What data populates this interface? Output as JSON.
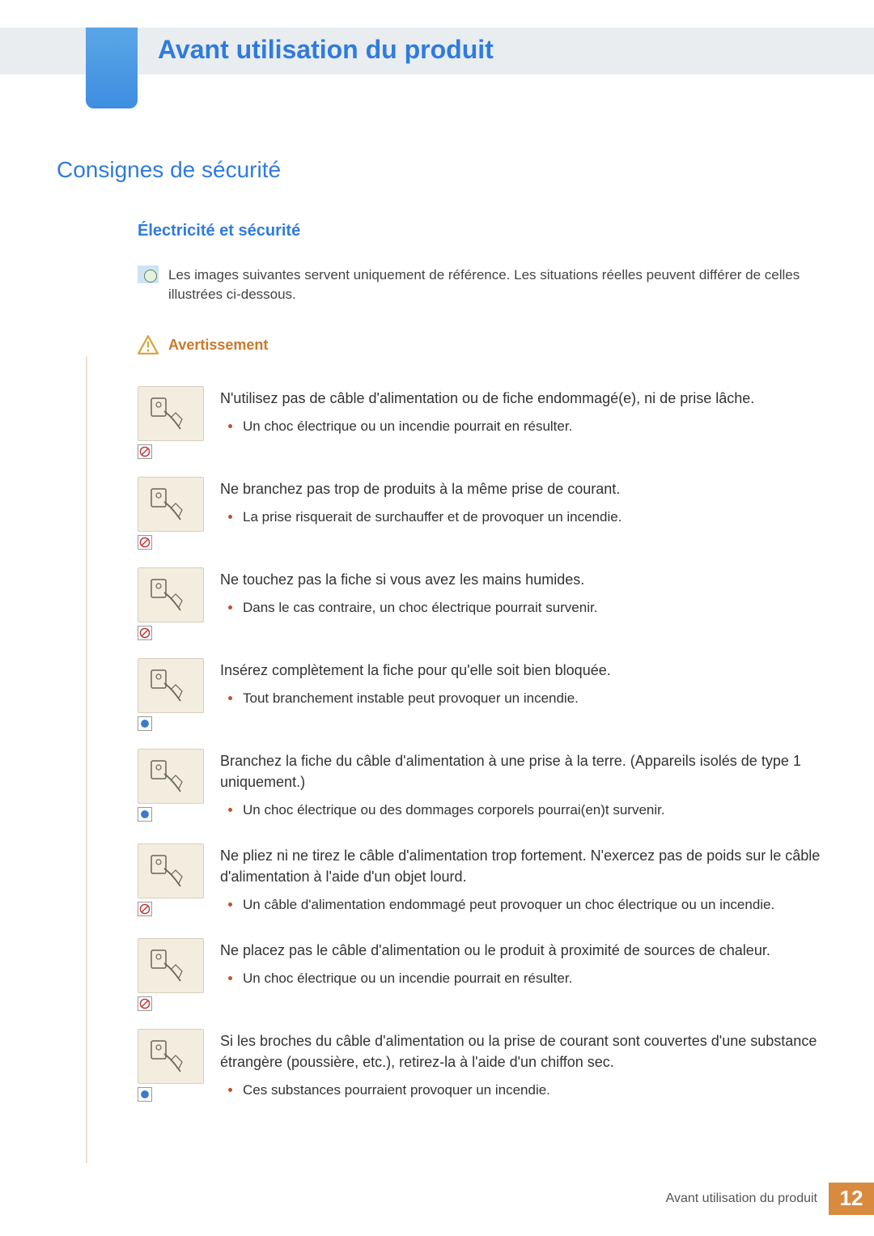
{
  "colors": {
    "accent_blue": "#2f7bdf",
    "header_bg": "#e9edf0",
    "tab_gradient_top": "#5aa6e6",
    "tab_gradient_bottom": "#3e8de0",
    "warning_orange": "#c97a2b",
    "bullet_red": "#c05030",
    "thumb_bg": "#f3ede0",
    "badge_orange": "#d88b3f",
    "side_line": "#e9e2cf"
  },
  "typography": {
    "chapter_title_size_pt": 24,
    "h1_size_pt": 21,
    "h2_size_pt": 15,
    "body_size_pt": 13
  },
  "chapter_title": "Avant utilisation du produit",
  "section_title": "Consignes de sécurité",
  "subsection_title": "Électricité et sécurité",
  "note_text": "Les images suivantes servent uniquement de référence. Les situations réelles peuvent différer de celles illustrées ci-dessous.",
  "warning_label": "Avertissement",
  "items": [
    {
      "badge": "prohibit",
      "lead": "N'utilisez pas de câble d'alimentation ou de fiche endommagé(e), ni de prise lâche.",
      "bullets": [
        "Un choc électrique ou un incendie pourrait en résulter."
      ]
    },
    {
      "badge": "prohibit",
      "lead": "Ne branchez pas trop de produits à la même prise de courant.",
      "bullets": [
        "La prise risquerait de surchauffer et de provoquer un incendie."
      ]
    },
    {
      "badge": "prohibit",
      "lead": "Ne touchez pas la fiche si vous avez les mains humides.",
      "bullets": [
        "Dans le cas contraire, un choc électrique pourrait survenir."
      ]
    },
    {
      "badge": "info",
      "lead": "Insérez complètement la fiche pour qu'elle soit bien bloquée.",
      "bullets": [
        "Tout branchement instable peut provoquer un incendie."
      ]
    },
    {
      "badge": "info",
      "lead": "Branchez la fiche du câble d'alimentation à une prise à la terre. (Appareils isolés de type 1 uniquement.)",
      "bullets": [
        "Un choc électrique ou des dommages corporels pourrai(en)t survenir."
      ]
    },
    {
      "badge": "prohibit",
      "lead": "Ne pliez ni ne tirez le câble d'alimentation trop fortement. N'exercez pas de poids sur le câble d'alimentation à l'aide d'un objet lourd.",
      "bullets": [
        "Un câble d'alimentation endommagé peut provoquer un choc électrique ou un incendie."
      ]
    },
    {
      "badge": "prohibit",
      "lead": "Ne placez pas le câble d'alimentation ou le produit à proximité de sources de chaleur.",
      "bullets": [
        "Un choc électrique ou un incendie pourrait en résulter."
      ]
    },
    {
      "badge": "info",
      "lead": "Si les broches du câble d'alimentation ou la prise de courant sont couvertes d'une substance étrangère (poussière, etc.), retirez-la à l'aide d'un chiffon sec.",
      "bullets": [
        "Ces substances pourraient provoquer un incendie."
      ]
    }
  ],
  "footer_text": "Avant utilisation du produit",
  "page_number": "12"
}
